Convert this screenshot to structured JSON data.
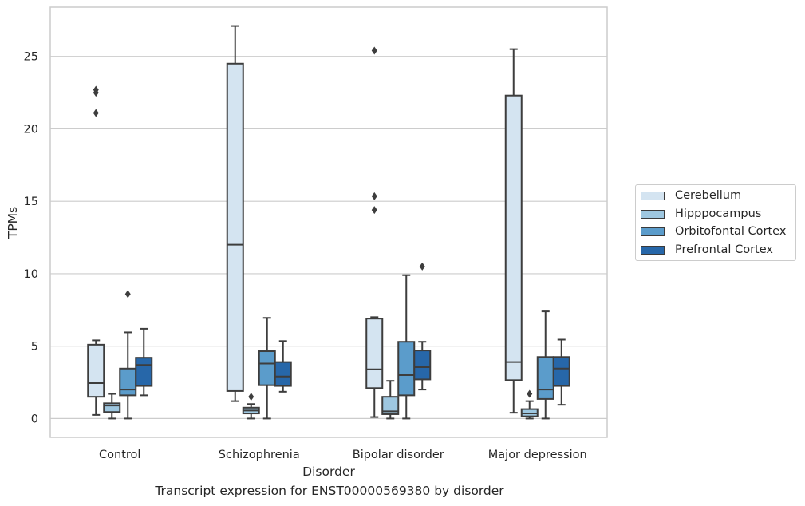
{
  "chart_data": {
    "type": "box",
    "title": "",
    "caption": "Transcript expression for ENST00000569380 by disorder",
    "xlabel": "Disorder",
    "ylabel": "TPMs",
    "ylim": [
      -1.3,
      28.4
    ],
    "yticks": [
      0,
      5,
      10,
      15,
      20,
      25
    ],
    "grid": "horizontal",
    "legend_position": "right",
    "categories": [
      "Control",
      "Schizophrenia",
      "Bipolar disorder",
      "Major depression"
    ],
    "series": [
      {
        "name": "Cerebellum",
        "color": "#d4e4f1",
        "boxes": [
          {
            "whislo": 0.25,
            "q1": 1.5,
            "med": 2.45,
            "q3": 5.1,
            "whishi": 5.4,
            "fliers": [
              22.7,
              22.5,
              21.1
            ]
          },
          {
            "whislo": 1.2,
            "q1": 1.9,
            "med": 12.0,
            "q3": 24.5,
            "whishi": 27.1,
            "fliers": []
          },
          {
            "whislo": 0.1,
            "q1": 2.1,
            "med": 3.4,
            "q3": 6.9,
            "whishi": 7.0,
            "fliers": [
              25.4,
              15.35,
              14.4
            ]
          },
          {
            "whislo": 0.4,
            "q1": 2.65,
            "med": 3.9,
            "q3": 22.3,
            "whishi": 25.5,
            "fliers": []
          }
        ]
      },
      {
        "name": "Hipppocampus",
        "color": "#9ec7e0",
        "boxes": [
          {
            "whislo": 0.0,
            "q1": 0.45,
            "med": 0.9,
            "q3": 1.05,
            "whishi": 1.7,
            "fliers": []
          },
          {
            "whislo": 0.0,
            "q1": 0.35,
            "med": 0.55,
            "q3": 0.75,
            "whishi": 1.0,
            "fliers": [
              1.5
            ]
          },
          {
            "whislo": 0.0,
            "q1": 0.3,
            "med": 0.5,
            "q3": 1.5,
            "whishi": 2.6,
            "fliers": []
          },
          {
            "whislo": 0.0,
            "q1": 0.15,
            "med": 0.35,
            "q3": 0.65,
            "whishi": 1.2,
            "fliers": [
              1.7
            ]
          }
        ]
      },
      {
        "name": "Orbitofontal Cortex",
        "color": "#5b9ccb",
        "boxes": [
          {
            "whislo": 0.0,
            "q1": 1.6,
            "med": 2.0,
            "q3": 3.45,
            "whishi": 5.95,
            "fliers": [
              8.6
            ]
          },
          {
            "whislo": 0.0,
            "q1": 2.3,
            "med": 3.8,
            "q3": 4.65,
            "whishi": 6.95,
            "fliers": []
          },
          {
            "whislo": 0.0,
            "q1": 1.6,
            "med": 3.0,
            "q3": 5.3,
            "whishi": 9.9,
            "fliers": []
          },
          {
            "whislo": 0.0,
            "q1": 1.35,
            "med": 2.0,
            "q3": 4.25,
            "whishi": 7.4,
            "fliers": []
          }
        ]
      },
      {
        "name": "Prefrontal Cortex",
        "color": "#2767a9",
        "boxes": [
          {
            "whislo": 1.6,
            "q1": 2.25,
            "med": 3.7,
            "q3": 4.2,
            "whishi": 6.2,
            "fliers": []
          },
          {
            "whislo": 1.85,
            "q1": 2.25,
            "med": 2.9,
            "q3": 3.9,
            "whishi": 5.35,
            "fliers": []
          },
          {
            "whislo": 2.0,
            "q1": 2.7,
            "med": 3.55,
            "q3": 4.7,
            "whishi": 5.3,
            "fliers": [
              10.5
            ]
          },
          {
            "whislo": 0.95,
            "q1": 2.25,
            "med": 3.45,
            "q3": 4.25,
            "whishi": 5.45,
            "fliers": []
          }
        ]
      }
    ]
  }
}
